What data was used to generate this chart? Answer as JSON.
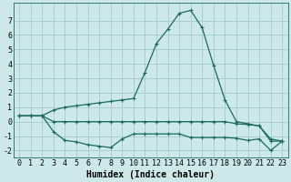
{
  "x": [
    0,
    1,
    2,
    3,
    4,
    5,
    6,
    7,
    8,
    9,
    10,
    11,
    12,
    13,
    14,
    15,
    16,
    17,
    18,
    19,
    20,
    21,
    22,
    23
  ],
  "line1": [
    0.4,
    0.4,
    0.4,
    -0.7,
    -1.3,
    -1.4,
    -1.6,
    -1.7,
    -1.8,
    -1.2,
    -0.85,
    -0.85,
    -0.85,
    -0.85,
    -0.85,
    -1.1,
    -1.1,
    -1.1,
    -1.1,
    -1.15,
    -1.3,
    -1.2,
    -2.0,
    -1.35
  ],
  "line2": [
    0.4,
    0.4,
    0.4,
    0.0,
    0.0,
    0.0,
    0.0,
    0.0,
    0.0,
    0.0,
    0.0,
    0.0,
    0.0,
    0.0,
    0.0,
    0.0,
    0.0,
    0.0,
    0.0,
    -0.15,
    -0.2,
    -0.3,
    -1.35,
    -1.35
  ],
  "line3": [
    0.4,
    0.4,
    0.4,
    0.8,
    1.0,
    1.1,
    1.2,
    1.3,
    1.4,
    1.5,
    1.6,
    3.4,
    5.4,
    6.4,
    7.5,
    7.7,
    6.5,
    3.9,
    1.5,
    0.0,
    -0.15,
    -0.3,
    -1.2,
    -1.35
  ],
  "bg_color": "#cce8e8",
  "grid_color": "#aacece",
  "line_color": "#1a6b5e",
  "markersize": 3,
  "linewidth": 0.9,
  "xlabel": "Humidex (Indice chaleur)",
  "xlabel_fontsize": 7,
  "tick_fontsize": 6,
  "ylim": [
    -2.5,
    8.2
  ],
  "xlim": [
    -0.5,
    23.5
  ],
  "yticks": [
    -2,
    -1,
    0,
    1,
    2,
    3,
    4,
    5,
    6,
    7
  ],
  "xticks": [
    0,
    1,
    2,
    3,
    4,
    5,
    6,
    7,
    8,
    9,
    10,
    11,
    12,
    13,
    14,
    15,
    16,
    17,
    18,
    19,
    20,
    21,
    22,
    23
  ]
}
